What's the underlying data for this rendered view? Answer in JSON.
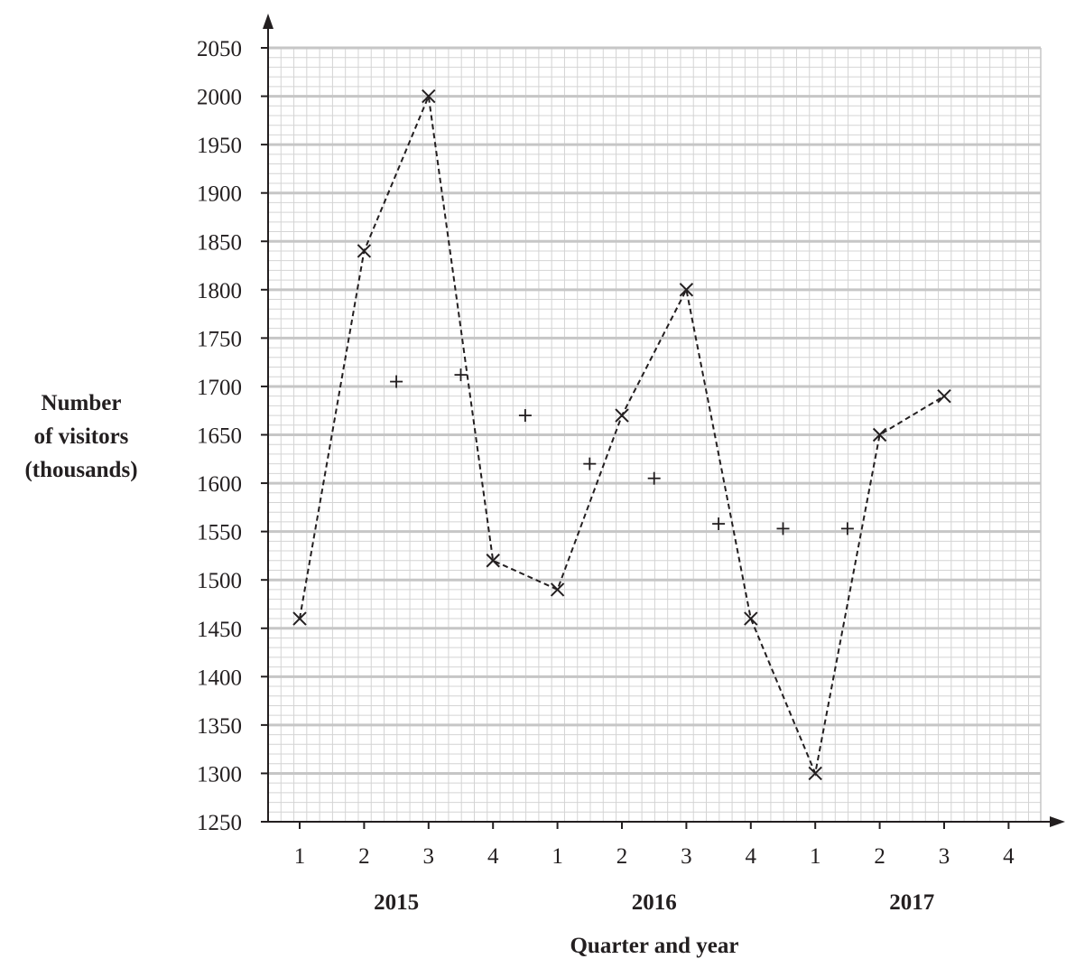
{
  "chart_data": {
    "type": "line",
    "xlabel": "Quarter and year",
    "ylabel": [
      "Number",
      "of visitors",
      "(thousands)"
    ],
    "ylim": [
      1250,
      2050
    ],
    "y_ticks": [
      1250,
      1300,
      1350,
      1400,
      1450,
      1500,
      1550,
      1600,
      1650,
      1700,
      1750,
      1800,
      1850,
      1900,
      1950,
      2000,
      2050
    ],
    "categories": [
      "1",
      "2",
      "3",
      "4",
      "1",
      "2",
      "3",
      "4",
      "1",
      "2",
      "3",
      "4"
    ],
    "years": [
      {
        "label": "2015",
        "center_index": 1.5
      },
      {
        "label": "2016",
        "center_index": 5.5
      },
      {
        "label": "2017",
        "center_index": 9.5
      }
    ],
    "grid": true,
    "series": [
      {
        "marker": "x",
        "line_style": "dashed",
        "x": [
          0,
          1,
          2,
          3,
          4,
          5,
          6,
          7,
          8,
          9,
          10
        ],
        "values": [
          1460,
          1840,
          2000,
          1520,
          1490,
          1670,
          1800,
          1460,
          1300,
          1650,
          1690
        ]
      },
      {
        "marker": "+",
        "line_style": "none",
        "x": [
          1.5,
          2.5,
          3.5,
          4.5,
          5.5,
          6.5,
          7.5,
          8.5
        ],
        "values": [
          1705,
          1712,
          1670,
          1620,
          1605,
          1558,
          1553,
          1553
        ]
      }
    ],
    "colors": {
      "major_grid": "#c6c6c6",
      "minor_grid": "#d4d4d4",
      "axis": "#231f20",
      "text": "#231f20"
    }
  }
}
